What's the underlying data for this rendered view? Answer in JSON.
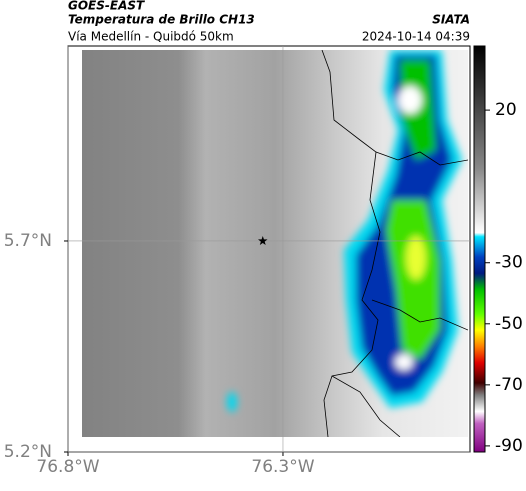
{
  "header": {
    "title": "GOES-EAST",
    "subtitle": "Temperatura de Brillo CH13",
    "region": "Vía Medellín - Quibdó 50km",
    "source": "SIATA",
    "timestamp": "2024-10-14 04:39"
  },
  "map": {
    "lon_range": [
      -76.8,
      -75.865
    ],
    "lat_range": [
      5.2,
      6.162
    ],
    "lon_ticks": [
      {
        "value": -76.8,
        "label": "76.8°W"
      },
      {
        "value": -76.3,
        "label": "76.3°W"
      }
    ],
    "lat_ticks": [
      {
        "value": 5.7,
        "label": "5.7°N"
      },
      {
        "value": 5.2,
        "label": "5.2°N"
      }
    ],
    "marker": {
      "lon": -76.347,
      "lat": 5.7
    }
  },
  "colorbar": {
    "range": [
      -92,
      41
    ],
    "ticks": [
      20,
      -30,
      -50,
      -70,
      -90
    ]
  }
}
